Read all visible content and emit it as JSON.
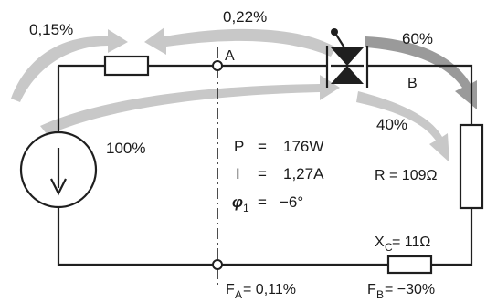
{
  "flows": {
    "top_left_pct": "0,15%",
    "top_center_pct": "0,22%",
    "branch_b_pct": "60%",
    "branch_r_pct": "40%",
    "source_pct": "100%"
  },
  "nodes": {
    "a_label": "A",
    "b_label": "B"
  },
  "values": {
    "p_symbol": "P",
    "p_eq": "=",
    "p_value": "176W",
    "i_symbol": "I",
    "i_eq": "=",
    "i_value": "1,27A",
    "phi_symbol": "φ",
    "phi_sub": "1",
    "phi_eq": "=",
    "phi_value": "−6°"
  },
  "components": {
    "r_label": "R = 109Ω",
    "xc_label_main": "X",
    "xc_label_sub": "C",
    "xc_label_rest": " = 11Ω"
  },
  "losses": {
    "fa_main": "F",
    "fa_sub": "A",
    "fa_rest": " = 0,11%",
    "fb_main": "F",
    "fb_sub": "B",
    "fb_rest": " = −30%"
  }
}
